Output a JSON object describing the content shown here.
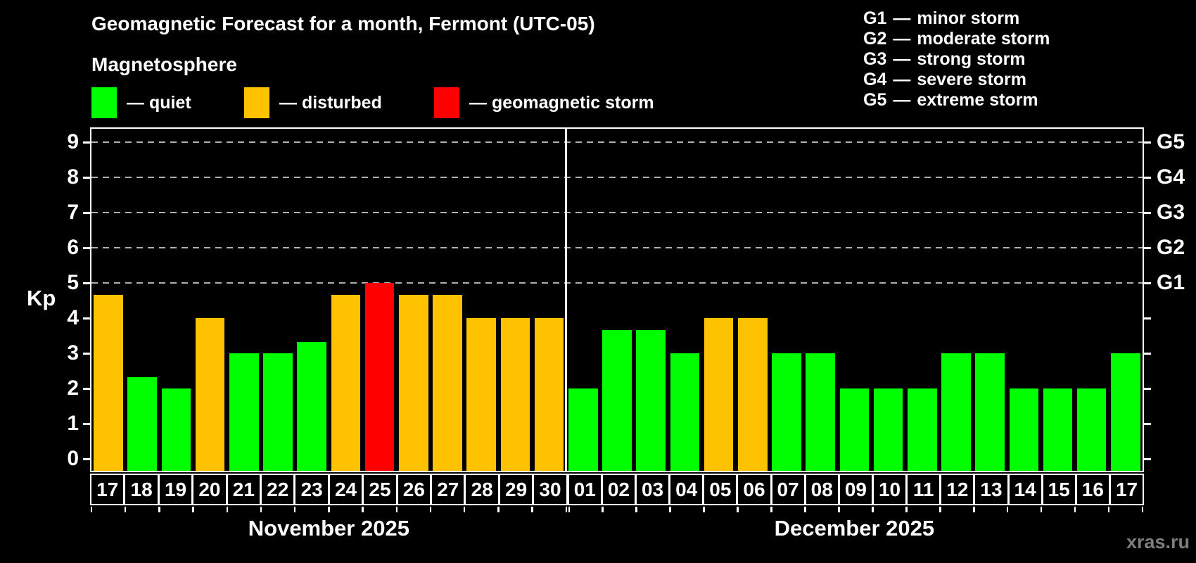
{
  "header": {
    "title": "Geomagnetic Forecast for a month, Fermont (UTC-05)",
    "subtitle": "Magnetosphere"
  },
  "legend": {
    "items": [
      {
        "name": "quiet",
        "label": "— quiet",
        "color": "#00FF00"
      },
      {
        "name": "disturbed",
        "label": "— disturbed",
        "color": "#FFC200"
      },
      {
        "name": "storm",
        "label": "— geomagnetic storm",
        "color": "#FF0000"
      }
    ]
  },
  "g_legend": {
    "separator": "—",
    "items": [
      {
        "code": "G1",
        "label": "minor storm"
      },
      {
        "code": "G2",
        "label": "moderate storm"
      },
      {
        "code": "G3",
        "label": "strong storm"
      },
      {
        "code": "G4",
        "label": "severe storm"
      },
      {
        "code": "G5",
        "label": "extreme storm"
      }
    ]
  },
  "watermark": "xras.ru",
  "chart_data": {
    "type": "bar",
    "title": "Geomagnetic Forecast for a month, Fermont (UTC-05)",
    "ylabel": "Kp",
    "ylim": [
      -0.35,
      9.4
    ],
    "grid": "dashed horizontal lines at Kp 5-9 (G1-G5)",
    "yticks": [
      "0",
      "1",
      "2",
      "3",
      "4",
      "5",
      "6",
      "7",
      "8",
      "9"
    ],
    "right_axis_labels": [
      {
        "kp": 5,
        "label": "G1"
      },
      {
        "kp": 6,
        "label": "G2"
      },
      {
        "kp": 7,
        "label": "G3"
      },
      {
        "kp": 8,
        "label": "G4"
      },
      {
        "kp": 9,
        "label": "G5"
      }
    ],
    "grid_levels": [
      5,
      6,
      7,
      8,
      9
    ],
    "colors": {
      "quiet": "#00FF00",
      "disturbed": "#FFC200",
      "storm": "#FF0000"
    },
    "months": [
      {
        "label": "November 2025",
        "days": [
          {
            "date": "17",
            "kp": 4.67,
            "state": "disturbed"
          },
          {
            "date": "18",
            "kp": 2.33,
            "state": "quiet"
          },
          {
            "date": "19",
            "kp": 2.0,
            "state": "quiet"
          },
          {
            "date": "20",
            "kp": 4.0,
            "state": "disturbed"
          },
          {
            "date": "21",
            "kp": 3.0,
            "state": "quiet"
          },
          {
            "date": "22",
            "kp": 3.0,
            "state": "quiet"
          },
          {
            "date": "23",
            "kp": 3.33,
            "state": "quiet"
          },
          {
            "date": "24",
            "kp": 4.67,
            "state": "disturbed"
          },
          {
            "date": "25",
            "kp": 5.0,
            "state": "storm"
          },
          {
            "date": "26",
            "kp": 4.67,
            "state": "disturbed"
          },
          {
            "date": "27",
            "kp": 4.67,
            "state": "disturbed"
          },
          {
            "date": "28",
            "kp": 4.0,
            "state": "disturbed"
          },
          {
            "date": "29",
            "kp": 4.0,
            "state": "disturbed"
          },
          {
            "date": "30",
            "kp": 4.0,
            "state": "disturbed"
          }
        ]
      },
      {
        "label": "December 2025",
        "days": [
          {
            "date": "01",
            "kp": 2.0,
            "state": "quiet"
          },
          {
            "date": "02",
            "kp": 3.67,
            "state": "quiet"
          },
          {
            "date": "03",
            "kp": 3.67,
            "state": "quiet"
          },
          {
            "date": "04",
            "kp": 3.0,
            "state": "quiet"
          },
          {
            "date": "05",
            "kp": 4.0,
            "state": "disturbed"
          },
          {
            "date": "06",
            "kp": 4.0,
            "state": "disturbed"
          },
          {
            "date": "07",
            "kp": 3.0,
            "state": "quiet"
          },
          {
            "date": "08",
            "kp": 3.0,
            "state": "quiet"
          },
          {
            "date": "09",
            "kp": 2.0,
            "state": "quiet"
          },
          {
            "date": "10",
            "kp": 2.0,
            "state": "quiet"
          },
          {
            "date": "11",
            "kp": 2.0,
            "state": "quiet"
          },
          {
            "date": "12",
            "kp": 3.0,
            "state": "quiet"
          },
          {
            "date": "13",
            "kp": 3.0,
            "state": "quiet"
          },
          {
            "date": "14",
            "kp": 2.0,
            "state": "quiet"
          },
          {
            "date": "15",
            "kp": 2.0,
            "state": "quiet"
          },
          {
            "date": "16",
            "kp": 2.0,
            "state": "quiet"
          },
          {
            "date": "17",
            "kp": 3.0,
            "state": "quiet"
          }
        ]
      }
    ]
  }
}
